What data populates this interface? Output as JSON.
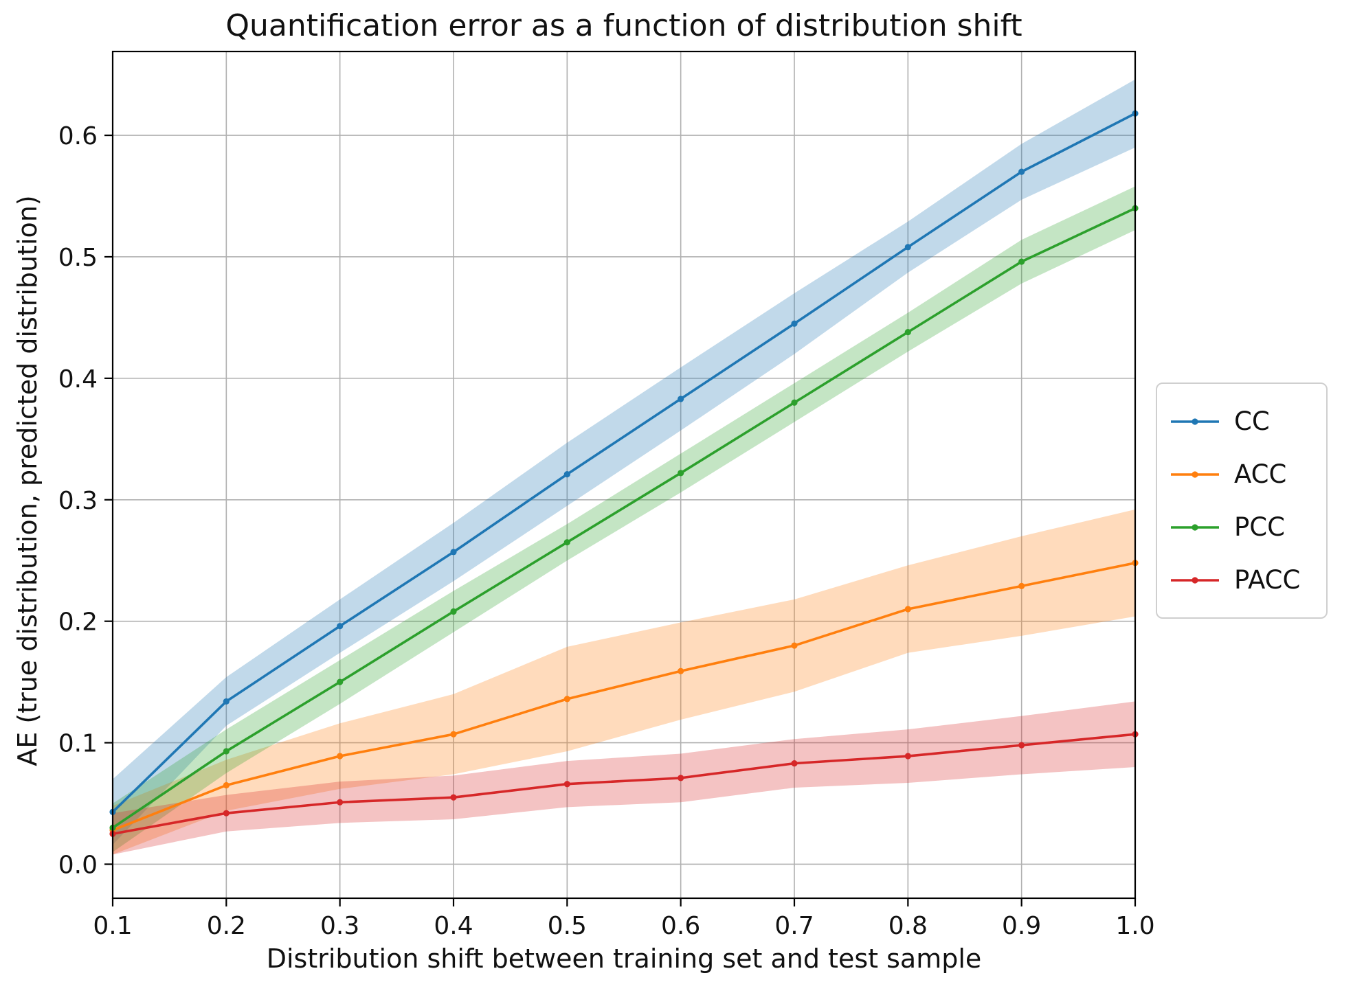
{
  "title": "Quantification error as a function of distribution shift",
  "xlabel": "Distribution shift between training set and test sample",
  "ylabel": "AE (true distribution, predicted distribution)",
  "legend": {
    "position": "right-outside",
    "items": [
      {
        "label": "CC",
        "color": "#1f77b4"
      },
      {
        "label": "ACC",
        "color": "#ff7f0e"
      },
      {
        "label": "PCC",
        "color": "#2ca02c"
      },
      {
        "label": "PACC",
        "color": "#d62728"
      }
    ]
  },
  "colors": {
    "cc": "#1f77b4",
    "acc": "#ff7f0e",
    "pcc": "#2ca02c",
    "pacc": "#d62728",
    "grid": "#b0b0b0",
    "spine": "#000000",
    "text": "#111111",
    "legend_border": "#cfcfcf"
  },
  "chart_data": {
    "type": "line",
    "x": [
      0.1,
      0.2,
      0.3,
      0.4,
      0.5,
      0.6,
      0.7,
      0.8,
      0.9,
      1.0
    ],
    "x_tick_labels": [
      "0.1",
      "0.2",
      "0.3",
      "0.4",
      "0.5",
      "0.6",
      "0.7",
      "0.8",
      "0.9",
      "1.0"
    ],
    "y_ticks": [
      0.0,
      0.1,
      0.2,
      0.3,
      0.4,
      0.5,
      0.6
    ],
    "y_tick_labels": [
      "0.0",
      "0.1",
      "0.2",
      "0.3",
      "0.4",
      "0.5",
      "0.6"
    ],
    "xlim": [
      0.1,
      1.0
    ],
    "ylim": [
      -0.028,
      0.669
    ],
    "grid": true,
    "title": "Quantification error as a function of distribution shift",
    "xlabel": "Distribution shift between training set and test sample",
    "ylabel": "AE (true distribution, predicted distribution)",
    "series": [
      {
        "name": "CC",
        "color": "#1f77b4",
        "values": [
          0.043,
          0.134,
          0.196,
          0.257,
          0.321,
          0.383,
          0.445,
          0.508,
          0.57,
          0.618
        ],
        "band_lo": [
          0.016,
          0.114,
          0.174,
          0.233,
          0.295,
          0.357,
          0.42,
          0.487,
          0.547,
          0.59
        ],
        "band_hi": [
          0.07,
          0.154,
          0.218,
          0.281,
          0.347,
          0.409,
          0.47,
          0.529,
          0.593,
          0.646
        ]
      },
      {
        "name": "ACC",
        "color": "#ff7f0e",
        "values": [
          0.028,
          0.065,
          0.089,
          0.107,
          0.136,
          0.159,
          0.18,
          0.21,
          0.229,
          0.248
        ],
        "band_lo": [
          0.008,
          0.044,
          0.062,
          0.074,
          0.093,
          0.119,
          0.142,
          0.174,
          0.188,
          0.204
        ],
        "band_hi": [
          0.048,
          0.086,
          0.116,
          0.14,
          0.179,
          0.199,
          0.218,
          0.246,
          0.27,
          0.292
        ]
      },
      {
        "name": "PCC",
        "color": "#2ca02c",
        "values": [
          0.03,
          0.093,
          0.15,
          0.208,
          0.265,
          0.322,
          0.38,
          0.438,
          0.496,
          0.54
        ],
        "band_lo": [
          0.01,
          0.075,
          0.132,
          0.191,
          0.25,
          0.306,
          0.364,
          0.422,
          0.478,
          0.522
        ],
        "band_hi": [
          0.05,
          0.111,
          0.168,
          0.225,
          0.28,
          0.338,
          0.396,
          0.454,
          0.514,
          0.558
        ]
      },
      {
        "name": "PACC",
        "color": "#d62728",
        "values": [
          0.025,
          0.042,
          0.051,
          0.055,
          0.066,
          0.071,
          0.083,
          0.089,
          0.098,
          0.107
        ],
        "band_lo": [
          0.008,
          0.027,
          0.034,
          0.037,
          0.047,
          0.051,
          0.063,
          0.067,
          0.074,
          0.08
        ],
        "band_hi": [
          0.042,
          0.057,
          0.068,
          0.073,
          0.085,
          0.091,
          0.103,
          0.111,
          0.122,
          0.134
        ]
      }
    ]
  }
}
